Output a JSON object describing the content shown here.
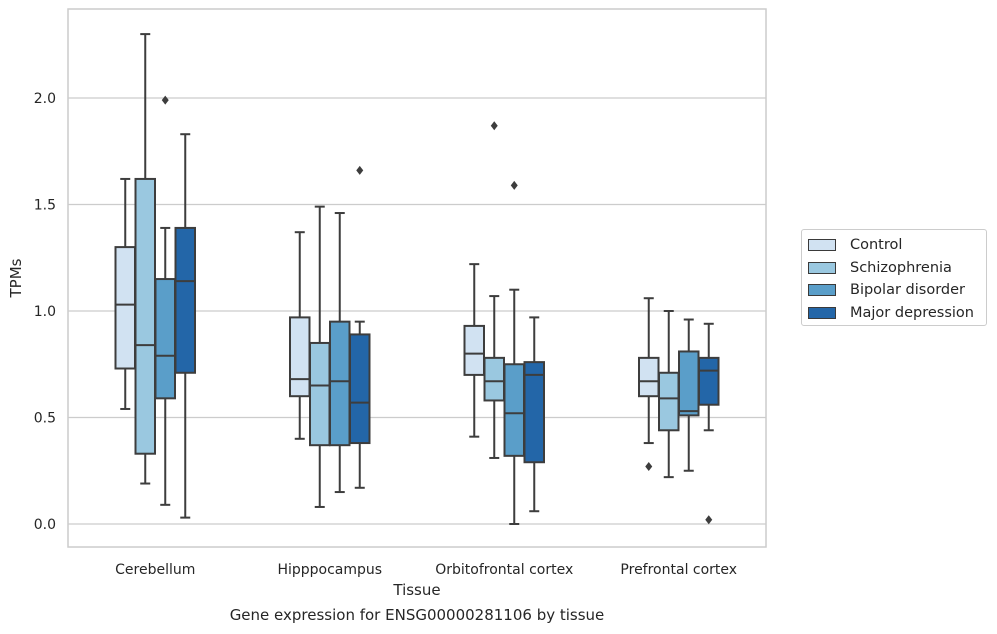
{
  "chart_data": {
    "type": "boxplot",
    "title": "Gene expression for ENSG00000281106 by tissue",
    "xlabel": "Tissue",
    "ylabel": "TPMs",
    "ylim": [
      -0.11,
      2.42
    ],
    "yticks": [
      "0.0",
      "0.5",
      "1.0",
      "1.5",
      "2.0"
    ],
    "ytick_values": [
      0.0,
      0.5,
      1.0,
      1.5,
      2.0
    ],
    "grid": true,
    "legend_position": "right",
    "categories": [
      "Cerebellum",
      "Hipppocampus",
      "Orbitofrontal cortex",
      "Prefrontal cortex"
    ],
    "series": [
      {
        "name": "Control",
        "color": "#d1e2f2",
        "boxes": [
          {
            "whislo": 0.54,
            "q1": 0.73,
            "med": 1.03,
            "q3": 1.3,
            "whishi": 1.62,
            "fliers": []
          },
          {
            "whislo": 0.4,
            "q1": 0.6,
            "med": 0.68,
            "q3": 0.97,
            "whishi": 1.37,
            "fliers": []
          },
          {
            "whislo": 0.41,
            "q1": 0.7,
            "med": 0.8,
            "q3": 0.93,
            "whishi": 1.22,
            "fliers": []
          },
          {
            "whislo": 0.38,
            "q1": 0.6,
            "med": 0.67,
            "q3": 0.78,
            "whishi": 1.06,
            "fliers": [
              0.27
            ]
          }
        ]
      },
      {
        "name": "Schizophrenia",
        "color": "#9ac8e0",
        "boxes": [
          {
            "whislo": 0.19,
            "q1": 0.33,
            "med": 0.84,
            "q3": 1.62,
            "whishi": 2.3,
            "fliers": []
          },
          {
            "whislo": 0.08,
            "q1": 0.37,
            "med": 0.65,
            "q3": 0.85,
            "whishi": 1.49,
            "fliers": []
          },
          {
            "whislo": 0.31,
            "q1": 0.58,
            "med": 0.67,
            "q3": 0.78,
            "whishi": 1.07,
            "fliers": [
              1.87
            ]
          },
          {
            "whislo": 0.22,
            "q1": 0.44,
            "med": 0.59,
            "q3": 0.71,
            "whishi": 1.0,
            "fliers": []
          }
        ]
      },
      {
        "name": "Bipolar disorder",
        "color": "#5a9ec9",
        "boxes": [
          {
            "whislo": 0.09,
            "q1": 0.59,
            "med": 0.79,
            "q3": 1.15,
            "whishi": 1.39,
            "fliers": [
              1.99
            ]
          },
          {
            "whislo": 0.15,
            "q1": 0.37,
            "med": 0.67,
            "q3": 0.95,
            "whishi": 1.46,
            "fliers": []
          },
          {
            "whislo": 0.0,
            "q1": 0.32,
            "med": 0.52,
            "q3": 0.75,
            "whishi": 1.1,
            "fliers": [
              1.59
            ]
          },
          {
            "whislo": 0.25,
            "q1": 0.51,
            "med": 0.53,
            "q3": 0.81,
            "whishi": 0.96,
            "fliers": []
          }
        ]
      },
      {
        "name": "Major depression",
        "color": "#2366a8",
        "boxes": [
          {
            "whislo": 0.03,
            "q1": 0.71,
            "med": 1.14,
            "q3": 1.39,
            "whishi": 1.83,
            "fliers": []
          },
          {
            "whislo": 0.17,
            "q1": 0.38,
            "med": 0.57,
            "q3": 0.89,
            "whishi": 0.95,
            "fliers": [
              1.66
            ]
          },
          {
            "whislo": 0.06,
            "q1": 0.29,
            "med": 0.7,
            "q3": 0.76,
            "whishi": 0.97,
            "fliers": []
          },
          {
            "whislo": 0.44,
            "q1": 0.56,
            "med": 0.72,
            "q3": 0.78,
            "whishi": 0.94,
            "fliers": [
              0.02
            ]
          }
        ]
      }
    ]
  }
}
